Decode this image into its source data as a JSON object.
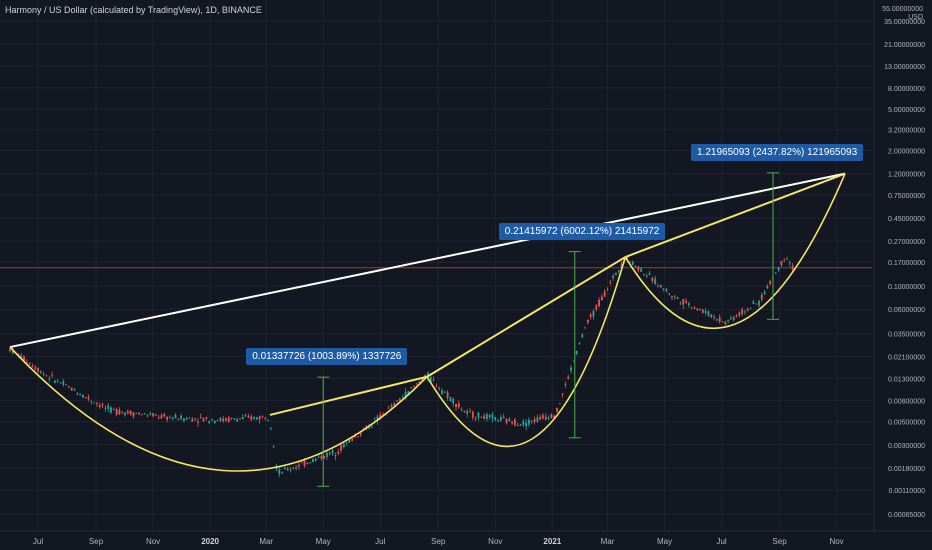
{
  "header": {
    "title": "Harmony / US Dollar (calculated by TradingView), 1D, BINANCE"
  },
  "price_axis": {
    "top_label": "55.00000000",
    "currency": "USD",
    "ticks": [
      "35.00000000",
      "21.00000000",
      "13.00000000",
      "8.00000000",
      "5.00000000",
      "3.20000000",
      "2.00000000",
      "1.20000000",
      "0.75000000",
      "0.45000000",
      "0.27000000",
      "0.17000000",
      "0.10000000",
      "0.06000000",
      "0.03500000",
      "0.02100000",
      "0.01300000",
      "0.00800000",
      "0.00500000",
      "0.00300000",
      "0.00180000",
      "0.00110000",
      "0.00065000"
    ]
  },
  "time_axis": {
    "ticks": [
      {
        "label": "Jul",
        "strong": false
      },
      {
        "label": "Sep",
        "strong": false
      },
      {
        "label": "Nov",
        "strong": false
      },
      {
        "label": "2020",
        "strong": true
      },
      {
        "label": "Mar",
        "strong": false
      },
      {
        "label": "May",
        "strong": false
      },
      {
        "label": "Jul",
        "strong": false
      },
      {
        "label": "Sep",
        "strong": false
      },
      {
        "label": "Nov",
        "strong": false
      },
      {
        "label": "2021",
        "strong": true
      },
      {
        "label": "Mar",
        "strong": false
      },
      {
        "label": "May",
        "strong": false
      },
      {
        "label": "Jul",
        "strong": false
      },
      {
        "label": "Sep",
        "strong": false
      },
      {
        "label": "Nov",
        "strong": false
      }
    ]
  },
  "annotations": [
    {
      "text": "0.01337726 (1003.89%) 1337726"
    },
    {
      "text": "0.21415972 (6002.12%) 21415972"
    },
    {
      "text": "1.21965093 (2437.82%) 121965093"
    }
  ],
  "colors": {
    "background": "#131722",
    "grid": "#1f2431",
    "candle_up": "#26a69a",
    "candle_down": "#ef5350",
    "cup_line": "#f5e663",
    "trend_line": "#ffffff",
    "measure_line": "#4caf50",
    "price_line": "#9b3b3b",
    "annotation_bg": "#1e5ba6"
  },
  "chart_data": {
    "type": "candlestick",
    "scale": "log",
    "series_points": [
      {
        "x": "2019-06-01",
        "y": 0.025
      },
      {
        "x": "2019-07-10",
        "y": 0.014
      },
      {
        "x": "2019-09-15",
        "y": 0.0065
      },
      {
        "x": "2019-11-15",
        "y": 0.0055
      },
      {
        "x": "2020-01-15",
        "y": 0.0052
      },
      {
        "x": "2020-03-05",
        "y": 0.0056
      },
      {
        "x": "2020-03-13",
        "y": 0.0016
      },
      {
        "x": "2020-05-15",
        "y": 0.0026
      },
      {
        "x": "2020-07-01",
        "y": 0.0055
      },
      {
        "x": "2020-08-20",
        "y": 0.014
      },
      {
        "x": "2020-10-01",
        "y": 0.006
      },
      {
        "x": "2020-12-01",
        "y": 0.0048
      },
      {
        "x": "2021-01-05",
        "y": 0.006
      },
      {
        "x": "2021-02-05",
        "y": 0.04
      },
      {
        "x": "2021-03-20",
        "y": 0.19
      },
      {
        "x": "2021-05-10",
        "y": 0.08
      },
      {
        "x": "2021-07-05",
        "y": 0.045
      },
      {
        "x": "2021-08-10",
        "y": 0.07
      },
      {
        "x": "2021-09-08",
        "y": 0.2
      },
      {
        "x": "2021-09-15",
        "y": 0.15
      }
    ],
    "last_price": 0.15,
    "measures": [
      {
        "x": "2020-05-01",
        "low": 0.0012,
        "high": 0.01338
      },
      {
        "x": "2021-01-25",
        "low": 0.0035,
        "high": 0.21416
      },
      {
        "x": "2021-08-25",
        "low": 0.048,
        "high": 1.21965
      }
    ],
    "trend_line": {
      "from": {
        "x": "2019-06-01",
        "y": 0.026
      },
      "to": {
        "x": "2021-11-10",
        "y": 1.2
      }
    },
    "cups": [
      {
        "start": {
          "x": "2019-06-01",
          "y": 0.026
        },
        "bottom": {
          "x": "2020-01-15",
          "y": 0.0017
        },
        "end": {
          "x": "2020-08-20",
          "y": 0.0135
        }
      },
      {
        "start": {
          "x": "2020-08-20",
          "y": 0.0135
        },
        "bottom": {
          "x": "2020-12-10",
          "y": 0.0034
        },
        "end": {
          "x": "2021-03-20",
          "y": 0.19
        }
      },
      {
        "start": {
          "x": "2021-03-20",
          "y": 0.19
        },
        "bottom": {
          "x": "2021-07-15",
          "y": 0.043
        },
        "end": {
          "x": "2021-11-10",
          "y": 1.2
        }
      }
    ],
    "rising_lines": [
      {
        "from": {
          "x": "2020-03-05",
          "y": 0.0058
        },
        "to": {
          "x": "2020-08-20",
          "y": 0.0135
        }
      },
      {
        "from": {
          "x": "2020-08-20",
          "y": 0.0135
        },
        "to": {
          "x": "2021-03-20",
          "y": 0.19
        }
      },
      {
        "from": {
          "x": "2021-03-20",
          "y": 0.19
        },
        "to": {
          "x": "2021-11-10",
          "y": 1.2
        }
      }
    ]
  }
}
